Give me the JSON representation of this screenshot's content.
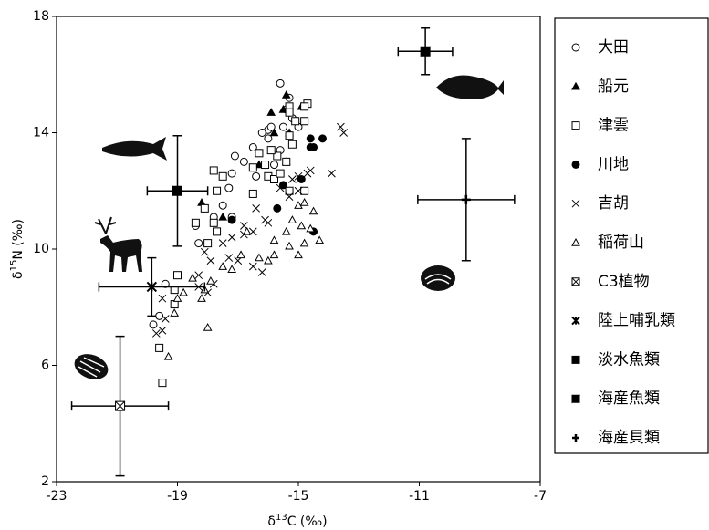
{
  "chart_data": {
    "type": "scatter",
    "xlabel": {
      "symbol": "δ",
      "sup": "13",
      "unit": "C (‰)"
    },
    "ylabel": {
      "symbol": "δ",
      "sup": "15",
      "unit": "N (‰)"
    },
    "xlim": [
      -23,
      -7
    ],
    "ylim": [
      2,
      18
    ],
    "xticks": [
      -23,
      -19,
      -15,
      -11,
      -7
    ],
    "yticks": [
      2,
      6,
      10,
      14,
      18
    ],
    "color": "#000000",
    "series": [
      {
        "name": "大田",
        "marker": "circle-open",
        "x": [
          -15.6,
          -15.3,
          -16.0,
          -16.2,
          -15.9,
          -15.5,
          -15.2,
          -15.0,
          -16.5,
          -16.8,
          -17.1,
          -17.2,
          -17.3,
          -16.4,
          -15.8,
          -15.6,
          -17.5,
          -17.8,
          -17.2,
          -18.4,
          -18.3,
          -19.4,
          -19.6,
          -19.8,
          -16.0,
          -15.4
        ],
        "y": [
          15.7,
          15.2,
          14.1,
          14.0,
          14.2,
          14.2,
          14.5,
          14.2,
          13.5,
          13.0,
          13.2,
          12.6,
          12.1,
          12.5,
          12.9,
          13.4,
          11.5,
          11.1,
          11.1,
          10.8,
          10.2,
          8.8,
          7.7,
          7.4,
          13.8,
          14.8
        ]
      },
      {
        "name": "船元",
        "marker": "triangle-filled",
        "x": [
          -15.4,
          -15.5,
          -15.9,
          -14.9,
          -15.8,
          -15.3,
          -18.2,
          -17.5,
          -16.3,
          -15.4
        ],
        "y": [
          15.3,
          14.8,
          14.7,
          14.9,
          14.0,
          14.0,
          11.6,
          11.1,
          12.9,
          13.0
        ]
      },
      {
        "name": "津雲",
        "marker": "square-open",
        "x": [
          -14.7,
          -14.8,
          -15.3,
          -15.3,
          -14.8,
          -15.1,
          -15.3,
          -15.2,
          -16.3,
          -16.1,
          -16.5,
          -16.0,
          -15.8,
          -15.6,
          -15.7,
          -15.4,
          -15.9,
          -17.8,
          -17.5,
          -17.7,
          -16.5,
          -18.1,
          -18.4,
          -17.8,
          -17.7,
          -18.0,
          -19.0,
          -19.1,
          -19.1,
          -19.6,
          -19.5,
          -15.3,
          -14.8
        ],
        "y": [
          15.0,
          14.9,
          14.9,
          14.7,
          14.4,
          14.4,
          13.9,
          13.6,
          13.3,
          12.9,
          12.8,
          12.5,
          12.4,
          12.6,
          13.2,
          13.0,
          13.4,
          12.7,
          12.5,
          12.0,
          11.9,
          11.4,
          10.9,
          10.9,
          10.6,
          10.2,
          9.1,
          8.6,
          8.1,
          6.6,
          5.4,
          12.0,
          12.0
        ]
      },
      {
        "name": "川地",
        "marker": "circle-filled",
        "x": [
          -14.6,
          -14.6,
          -14.5,
          -14.2,
          -14.9,
          -15.5,
          -15.7,
          -17.2,
          -14.5
        ],
        "y": [
          13.8,
          13.5,
          13.5,
          13.8,
          12.4,
          12.2,
          11.4,
          11.0,
          10.6
        ]
      },
      {
        "name": "吉胡",
        "marker": "x",
        "x": [
          -13.6,
          -13.5,
          -13.9,
          -14.7,
          -15.0,
          -15.2,
          -15.6,
          -15.3,
          -16.4,
          -16.1,
          -16.0,
          -16.8,
          -16.5,
          -16.8,
          -17.2,
          -17.5,
          -17.3,
          -17.0,
          -16.2,
          -16.5,
          -17.9,
          -18.1,
          -17.8,
          -18.3,
          -18.3,
          -19.5,
          -19.4,
          -19.5,
          -19.7,
          -18.0,
          -15.0,
          -14.6
        ],
        "y": [
          14.2,
          14.0,
          12.6,
          12.6,
          12.5,
          12.4,
          12.1,
          11.8,
          11.4,
          11.0,
          10.9,
          10.8,
          10.6,
          10.5,
          10.4,
          10.2,
          9.7,
          9.6,
          9.2,
          9.4,
          9.6,
          9.9,
          8.8,
          9.1,
          8.7,
          8.3,
          7.6,
          7.2,
          7.1,
          8.5,
          12.0,
          12.7
        ]
      },
      {
        "name": "稲荷山",
        "marker": "triangle-open",
        "x": [
          -14.8,
          -15.0,
          -14.5,
          -15.2,
          -15.4,
          -14.9,
          -14.6,
          -14.3,
          -15.8,
          -15.3,
          -15.8,
          -16.0,
          -16.3,
          -16.9,
          -17.2,
          -17.5,
          -17.9,
          -18.1,
          -18.2,
          -18.5,
          -18.8,
          -19.0,
          -19.1,
          -19.3,
          -18.0,
          -14.8,
          -15.0,
          -16.7
        ],
        "y": [
          11.6,
          11.5,
          11.3,
          11.0,
          10.6,
          10.8,
          10.7,
          10.3,
          10.3,
          10.1,
          9.8,
          9.6,
          9.7,
          9.8,
          9.3,
          9.4,
          8.9,
          8.6,
          8.3,
          9.0,
          8.5,
          8.3,
          7.8,
          6.3,
          7.3,
          10.2,
          9.8,
          10.6
        ]
      },
      {
        "name": "C3植物",
        "marker": "square-x",
        "x": [
          -20.9
        ],
        "y": [
          4.6
        ],
        "xerr": [
          1.6
        ],
        "yerr": [
          2.4
        ]
      },
      {
        "name": "陸上哺乳類",
        "marker": "asterisk",
        "x": [
          -19.85
        ],
        "y": [
          8.7
        ],
        "xerr": [
          1.75
        ],
        "yerr": [
          1.0
        ]
      },
      {
        "name": "淡水魚類",
        "marker": "square-filled",
        "x": [
          -19.0
        ],
        "y": [
          12.0
        ],
        "xerr": [
          1.0
        ],
        "yerr": [
          1.9
        ]
      },
      {
        "name": "海産魚類",
        "marker": "square-half",
        "x": [
          -10.8
        ],
        "y": [
          16.8
        ],
        "xerr": [
          0.9
        ],
        "yerr": [
          0.8
        ]
      },
      {
        "name": "海産貝類",
        "marker": "plus",
        "x": [
          -9.45
        ],
        "y": [
          11.7
        ],
        "xerr": [
          1.6
        ],
        "yerr": [
          2.1
        ]
      }
    ]
  }
}
